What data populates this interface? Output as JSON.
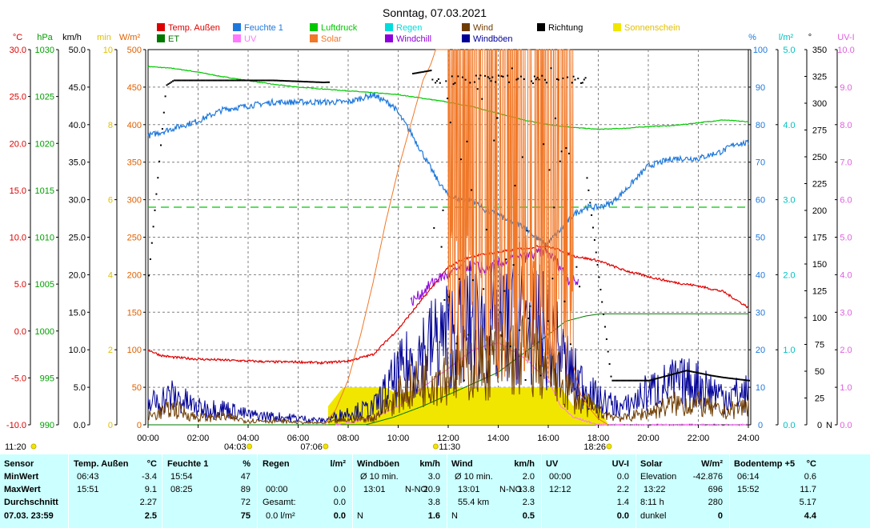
{
  "title": "Sonntag, 07.03.2021",
  "legend": [
    {
      "label": "Temp. Außen",
      "color": "#dd0000"
    },
    {
      "label": "Feuchte 1",
      "color": "#1e78dc"
    },
    {
      "label": "Luftdruck",
      "color": "#00c800"
    },
    {
      "label": "Regen",
      "color": "#00dcdc"
    },
    {
      "label": "Wind",
      "color": "#6e3c00"
    },
    {
      "label": "Richtung",
      "color": "#000000"
    },
    {
      "label": "Sonnenschein",
      "color": "#f0e600"
    },
    {
      "label": "ET",
      "color": "#007800"
    },
    {
      "label": "UV",
      "color": "#ff78ff"
    },
    {
      "label": "Solar",
      "color": "#f07828"
    },
    {
      "label": "Windchill",
      "color": "#8c00dc"
    },
    {
      "label": "Windböen",
      "color": "#000096"
    }
  ],
  "axes": {
    "temp": {
      "unit": "°C",
      "color": "#dd0000",
      "ticks": [
        "30.0",
        "25.0",
        "20.0",
        "15.0",
        "10.0",
        "5.0",
        "0.0",
        "-5.0",
        "-10.0"
      ]
    },
    "hpa": {
      "unit": "hPa",
      "color": "#00a000",
      "ticks": [
        "1030",
        "1025",
        "1020",
        "1015",
        "1010",
        "1005",
        "1000",
        "995",
        "990"
      ]
    },
    "kmh": {
      "unit": "km/h",
      "color": "#000000",
      "ticks": [
        "50.0",
        "45.0",
        "40.0",
        "35.0",
        "30.0",
        "25.0",
        "20.0",
        "15.0",
        "10.0",
        "5.0",
        "0.0"
      ]
    },
    "min": {
      "unit": "min",
      "color": "#e0c000",
      "ticks": [
        "10",
        "8",
        "6",
        "4",
        "2",
        "0"
      ]
    },
    "wm2": {
      "unit": "W/m²",
      "color": "#e06000",
      "ticks": [
        "500",
        "450",
        "400",
        "350",
        "300",
        "250",
        "200",
        "150",
        "100",
        "50",
        "0"
      ]
    },
    "pct": {
      "unit": "%",
      "color": "#1e78dc",
      "ticks": [
        "100",
        "90",
        "80",
        "70",
        "60",
        "50",
        "40",
        "30",
        "20",
        "10",
        "0"
      ]
    },
    "lm2": {
      "unit": "l/m²",
      "color": "#00c0c0",
      "ticks": [
        "5.0",
        "4.0",
        "3.0",
        "2.0",
        "1.0",
        "0.0"
      ]
    },
    "deg": {
      "unit": "°",
      "color": "#000000",
      "ticks": [
        "350",
        "325",
        "300",
        "275",
        "250",
        "225",
        "200",
        "175",
        "150",
        "125",
        "100",
        "75",
        "50",
        "25",
        "0"
      ],
      "zero_label": "N"
    },
    "uvi": {
      "unit": "UV-I",
      "color": "#e060e0",
      "ticks": [
        "10.0",
        "9.0",
        "8.0",
        "7.0",
        "6.0",
        "5.0",
        "4.0",
        "3.0",
        "2.0",
        "1.0",
        "0.0"
      ]
    }
  },
  "x_ticks": [
    "00:00",
    "02:00",
    "04:00",
    "06:00",
    "08:00",
    "10:00",
    "12:00",
    "14:00",
    "16:00",
    "18:00",
    "20:00",
    "22:00",
    "24:00"
  ],
  "markers": [
    {
      "label": "04:03",
      "hour": 4.05,
      "row": 1
    },
    {
      "label": "07:06",
      "hour": 7.1,
      "row": 1
    },
    {
      "label": "11:30",
      "hour": 11.5,
      "row": 0
    },
    {
      "label": "18:26",
      "hour": 18.43,
      "row": 1
    }
  ],
  "moon_label": "11:20",
  "chart_data": {
    "type": "line",
    "title": "Sonntag, 07.03.2021",
    "x_range_hours": [
      0,
      24
    ],
    "threshold_pct": 58,
    "series": [
      {
        "name": "Temp. Außen",
        "axis": "°C",
        "x": [
          0,
          0.5,
          1,
          2,
          3,
          4,
          5,
          6,
          7,
          7.5,
          8,
          9,
          10,
          11,
          12,
          12.5,
          13,
          14,
          15,
          15.85,
          16.5,
          17,
          18,
          19,
          20,
          21,
          22,
          23,
          24
        ],
        "y": [
          -2.0,
          -2.6,
          -2.8,
          -3.0,
          -3.1,
          -3.2,
          -3.3,
          -3.3,
          -3.4,
          -3.3,
          -3.2,
          -2.5,
          0.2,
          3.5,
          6.8,
          7.5,
          8.0,
          8.4,
          8.8,
          9.1,
          8.6,
          8.0,
          7.5,
          6.5,
          5.8,
          5.2,
          4.8,
          4.2,
          2.5
        ]
      },
      {
        "name": "Feuchte 1",
        "axis": "%",
        "x": [
          0,
          1,
          2,
          3,
          4,
          5,
          6,
          7,
          8,
          9,
          9.8,
          10.5,
          11,
          11.5,
          12,
          12.5,
          13,
          13.5,
          14,
          14.5,
          15,
          15.5,
          15.9,
          16.5,
          17,
          17.5,
          18,
          18.5,
          19,
          20,
          21,
          22,
          23,
          23.5,
          24
        ],
        "y": [
          77,
          79,
          81,
          84,
          85,
          86,
          86,
          86,
          86,
          88,
          85,
          78,
          72,
          66,
          61,
          60,
          60,
          57,
          56,
          54,
          53,
          50,
          48,
          52,
          56,
          58,
          58,
          59,
          62,
          69,
          71,
          71,
          73,
          75,
          75
        ]
      },
      {
        "name": "Luftdruck",
        "axis": "hPa",
        "x": [
          0,
          1,
          2,
          3,
          4,
          5,
          6,
          7,
          8,
          9,
          10,
          11,
          12,
          13,
          14,
          15,
          16,
          17,
          18,
          19,
          20,
          21,
          22,
          23,
          24
        ],
        "y": [
          1028.2,
          1028.0,
          1027.6,
          1027.1,
          1026.7,
          1026.3,
          1026.0,
          1025.8,
          1025.6,
          1025.4,
          1025.2,
          1024.8,
          1024.4,
          1023.9,
          1023.2,
          1022.5,
          1022.0,
          1021.7,
          1021.5,
          1021.6,
          1021.8,
          1021.9,
          1022.2,
          1022.5,
          1022.3
        ]
      },
      {
        "name": "Windchill",
        "axis": "°C",
        "x": [
          10.5,
          11,
          11.5,
          12,
          12.5,
          13,
          13.5,
          14,
          14.5,
          15,
          15.5,
          15.85,
          16.3,
          16.8,
          17.2
        ],
        "y": [
          3.0,
          4.2,
          5.5,
          6.0,
          6.8,
          7.0,
          6.5,
          7.2,
          7.6,
          7.8,
          8.2,
          8.6,
          7.5,
          5.5,
          5.2
        ]
      },
      {
        "name": "ET",
        "axis": "l/m²",
        "x": [
          0,
          8.7,
          9.8,
          11,
          12,
          13,
          14,
          15,
          16,
          16.7,
          17.5,
          18.1,
          24
        ],
        "y": [
          0,
          0,
          0.1,
          0.25,
          0.4,
          0.55,
          0.7,
          0.95,
          1.2,
          1.38,
          1.45,
          1.48,
          1.48
        ]
      },
      {
        "name": "Solar",
        "axis": "W/m²",
        "x": [
          7.06,
          7.5,
          8,
          8.5,
          9,
          9.5,
          10,
          10.5,
          11,
          11.3,
          11.5,
          12,
          12.5,
          12.8,
          13,
          13.5,
          14,
          14.5,
          15,
          15.5,
          15.9,
          16.3,
          16.6,
          17,
          17.3,
          17.7,
          18,
          18.4,
          24
        ],
        "y": [
          0,
          20,
          60,
          120,
          190,
          270,
          340,
          400,
          460,
          480,
          500,
          500,
          500,
          480,
          500,
          470,
          500,
          420,
          500,
          300,
          500,
          100,
          420,
          80,
          40,
          20,
          8,
          0,
          0
        ]
      },
      {
        "name": "UV",
        "axis": "UV-I",
        "x": [
          7.5,
          8,
          9,
          10,
          11,
          12,
          13,
          14,
          15,
          16,
          16.5,
          17,
          18,
          24
        ],
        "y": [
          0,
          0.05,
          0.2,
          0.5,
          1.0,
          1.5,
          2.0,
          2.2,
          1.8,
          1.2,
          0.5,
          0.2,
          0,
          0
        ]
      },
      {
        "name": "Wind",
        "axis": "km/h",
        "x": [
          0,
          1,
          2,
          3,
          4,
          5,
          6,
          7,
          8,
          9,
          10,
          11,
          12,
          13,
          14,
          15,
          16,
          17,
          18,
          19,
          20,
          21,
          22,
          23,
          24
        ],
        "y": [
          1.0,
          2.0,
          0.8,
          1.0,
          0.5,
          0.5,
          0.3,
          0.2,
          0.6,
          0.8,
          3.5,
          5.5,
          6.5,
          7.5,
          8.0,
          8.5,
          7.0,
          3.5,
          1.5,
          0.8,
          1.5,
          2.5,
          2.5,
          1.5,
          2.3
        ]
      },
      {
        "name": "Windböen",
        "axis": "km/h",
        "x": [
          0,
          1,
          2,
          3,
          4,
          5,
          6,
          7,
          8,
          9,
          10,
          11,
          12,
          13,
          14,
          15,
          16,
          17,
          18,
          19,
          20,
          21,
          22,
          23,
          24
        ],
        "y": [
          2.5,
          3.5,
          2.0,
          2.0,
          1.2,
          1.0,
          0.8,
          0.5,
          1.5,
          2.0,
          6.0,
          9.0,
          11.0,
          12.5,
          12.0,
          13.0,
          11.0,
          6.0,
          3.0,
          2.0,
          4.0,
          5.0,
          5.0,
          3.5,
          3.8
        ]
      },
      {
        "name": "Richtung",
        "axis": "°",
        "x": [
          0,
          0.7,
          1,
          3,
          5,
          7,
          9,
          11.3,
          12,
          14,
          16,
          17,
          18.5,
          20,
          21.5,
          22.5,
          23,
          24
        ],
        "y": [
          150,
          340,
          345,
          345,
          345,
          343,
          345,
          355,
          355,
          355,
          355,
          355,
          45,
          45,
          55,
          50,
          48,
          45
        ]
      },
      {
        "name": "Sonnenschein",
        "axis": "min",
        "x": [
          7.2,
          7.8,
          9.5,
          10,
          11,
          12,
          13,
          14,
          15,
          16,
          16.5,
          17,
          17.5,
          18,
          18.4
        ],
        "y": [
          0.5,
          1.0,
          1.0,
          0.8,
          1.0,
          1.0,
          1.0,
          1.0,
          1.0,
          1.0,
          1.0,
          0.5,
          0.8,
          0.5,
          0
        ]
      }
    ]
  },
  "stats": {
    "sensor": {
      "header": "Sensor",
      "rows": [
        "MinWert",
        "MaxWert",
        "Durchschnitt",
        "07.03.  23:59"
      ]
    },
    "temp": {
      "header": "Temp. Außen",
      "unit": "°C",
      "rows": [
        [
          "06:43",
          "-3.4"
        ],
        [
          "15:51",
          "9.1"
        ],
        [
          "",
          "2.27"
        ],
        [
          "",
          "2.5"
        ]
      ]
    },
    "feuchte": {
      "header": "Feuchte 1",
      "unit": "%",
      "rows": [
        [
          "15:54",
          "47"
        ],
        [
          "08:25",
          "89"
        ],
        [
          "",
          "72"
        ],
        [
          "",
          "75"
        ]
      ]
    },
    "regen": {
      "header": "Regen",
      "unit": "l/m²",
      "rows": [
        [
          "",
          ""
        ],
        [
          "00:00",
          "0.0"
        ],
        [
          "Gesamt:",
          "0.0"
        ],
        [
          "0.0 l/m²",
          "0.0"
        ]
      ]
    },
    "windboen": {
      "header": "Windböen",
      "unit": "km/h",
      "rows": [
        [
          "Ø 10 min.",
          "",
          "3.0"
        ],
        [
          "13:01",
          "N-NO",
          "20.9"
        ],
        [
          "",
          "",
          "3.8"
        ],
        [
          "N",
          "",
          "1.6"
        ]
      ]
    },
    "wind": {
      "header": "Wind",
      "unit": "km/h",
      "rows": [
        [
          "Ø 10 min.",
          "",
          "2.0"
        ],
        [
          "13:01",
          "N-NO",
          "13.8"
        ],
        [
          "55.4 km",
          "",
          "2.3"
        ],
        [
          "N",
          "",
          "0.5"
        ]
      ]
    },
    "uv": {
      "header": "UV",
      "unit": "UV-I",
      "rows": [
        [
          "00:00",
          "0.0"
        ],
        [
          "12:12",
          "2.2"
        ],
        [
          "",
          "1.4"
        ],
        [
          "",
          "0.0"
        ]
      ]
    },
    "solar": {
      "header": "Solar",
      "unit": "W/m²",
      "rows": [
        [
          "Elevation",
          "-42.876"
        ],
        [
          "13:22",
          "696"
        ],
        [
          "8:11 h",
          "280"
        ],
        [
          "dunkel",
          "0"
        ]
      ]
    },
    "boden": {
      "header": "Bodentemp +5",
      "unit": "°C",
      "rows": [
        [
          "06:14",
          "0.6"
        ],
        [
          "15:52",
          "11.7"
        ],
        [
          "",
          "5.17"
        ],
        [
          "",
          "4.4"
        ]
      ]
    }
  }
}
